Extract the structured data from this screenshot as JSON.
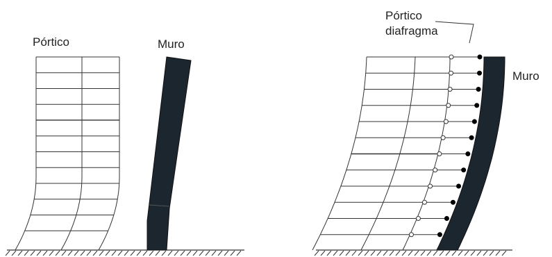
{
  "labels": {
    "left_frame": "Pórtico",
    "left_wall": "Muro",
    "right_frame_line1": "Pórtico",
    "right_frame_line2": "diafragma",
    "right_wall": "Muro"
  },
  "colors": {
    "wall_fill": "#1c262e",
    "line": "#333333"
  }
}
